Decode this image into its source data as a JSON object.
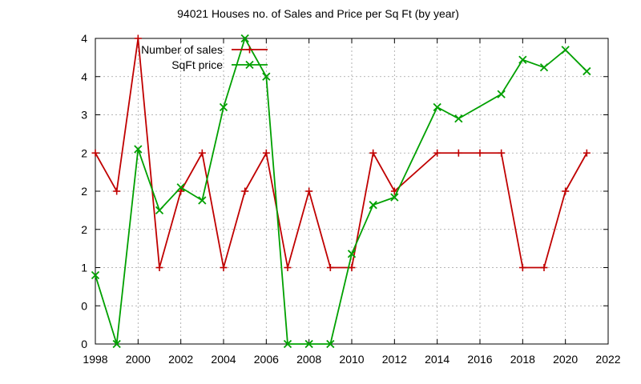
{
  "chart_data": {
    "type": "line",
    "title": "94021 Houses no. of Sales and Price per Sq Ft (by year)",
    "xlabel": "",
    "ylabel": "",
    "xlim": [
      1998,
      2022
    ],
    "ylim": [
      0,
      4
    ],
    "x_ticks": [
      "1998",
      "2000",
      "2002",
      "2004",
      "2006",
      "2008",
      "2010",
      "2012",
      "2014",
      "2016",
      "2018",
      "2020",
      "2022"
    ],
    "y_ticks": [
      "0",
      "0",
      "1",
      "2",
      "2",
      "2",
      "3",
      "4",
      "4"
    ],
    "grid": true,
    "legend_position": "top-left",
    "series": [
      {
        "name": "Number of sales",
        "color": "#c00000",
        "marker": "plus",
        "x": [
          1998,
          1999,
          2000,
          2001,
          2002,
          2003,
          2004,
          2005,
          2006,
          2007,
          2008,
          2009,
          2010,
          2011,
          2012,
          2014,
          2015,
          2016,
          2017,
          2018,
          2019,
          2020,
          2021
        ],
        "y": [
          2.5,
          2.0,
          4.0,
          1.0,
          2.0,
          2.5,
          1.0,
          2.0,
          2.5,
          1.0,
          2.0,
          1.0,
          1.0,
          2.5,
          2.0,
          2.5,
          2.5,
          2.5,
          2.5,
          1.0,
          1.0,
          2.0,
          2.5
        ]
      },
      {
        "name": "SqFt price",
        "color": "#00a000",
        "marker": "cross",
        "x": [
          1998,
          1999,
          2000,
          2001,
          2002,
          2003,
          2004,
          2005,
          2006,
          2007,
          2008,
          2009,
          2010,
          2011,
          2012,
          2014,
          2015,
          2017,
          2018,
          2019,
          2020,
          2021
        ],
        "y": [
          0.9,
          0.0,
          2.55,
          1.75,
          2.05,
          1.88,
          3.1,
          4.0,
          3.5,
          0.0,
          0.0,
          0.0,
          1.18,
          1.82,
          1.92,
          3.1,
          2.95,
          3.27,
          3.72,
          3.62,
          3.85,
          3.57
        ]
      }
    ]
  }
}
